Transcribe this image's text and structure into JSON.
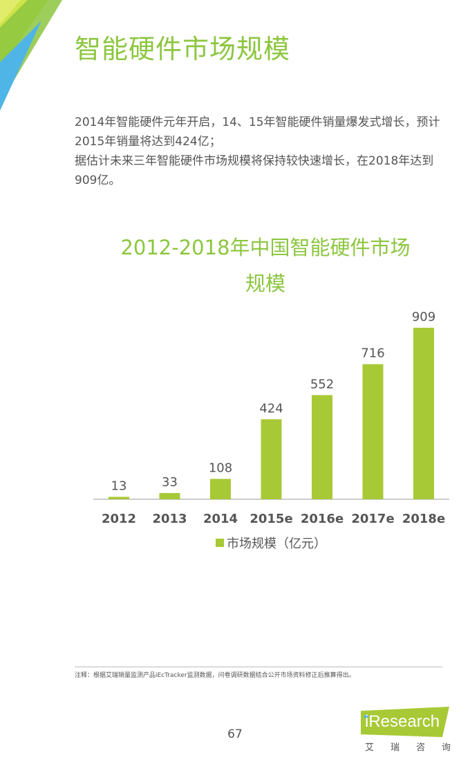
{
  "title": "智能硬件市场规模",
  "intro": {
    "paragraph1": "2014年智能硬件元年开启，14、15年智能硬件销量爆发式增长，预计2015年销量将达到424亿；",
    "paragraph2": "据估计未来三年智能硬件市场规模将保持较快速增长，在2018年达到909亿。"
  },
  "chart_title": {
    "line1": "2012-2018年中国智能硬件市场",
    "line2": "规模"
  },
  "chart_data": {
    "type": "bar",
    "categories": [
      "2012",
      "2013",
      "2014",
      "2015e",
      "2016e",
      "2017e",
      "2018e"
    ],
    "series": [
      {
        "name": "市场规模（亿元）",
        "values": [
          13,
          33,
          108,
          424,
          552,
          716,
          909
        ],
        "color": "#a8c936"
      }
    ],
    "title": "2012-2018年中国智能硬件市场规模",
    "legend": "bottom-center",
    "grid": false
  },
  "legend_label": "市场规模（亿元）",
  "footnote": "注释：根据艾瑞销量监测产品iEcTracker监测数据，问卷调研数据结合公开市场资料修正后推算得出。",
  "page_number": "67",
  "logo": {
    "wordmark": "iResearch",
    "subtitle": [
      "艾",
      "瑞",
      "咨",
      "询"
    ]
  },
  "colors": {
    "accent": "#8cc63f",
    "bar": "#a8c936",
    "logo_green": "#a8c936",
    "corner_blue": "#4fb4e6"
  }
}
